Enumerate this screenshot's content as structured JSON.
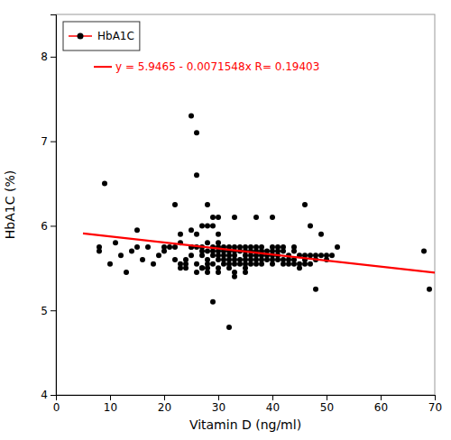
{
  "chart_data": {
    "type": "scatter",
    "xlabel": "Vitamin D (ng/ml)",
    "ylabel": "HbA1C (%)",
    "xlim": [
      0,
      70
    ],
    "ylim": [
      4,
      8.5
    ],
    "xticks": [
      0,
      10,
      20,
      30,
      40,
      50,
      60,
      70
    ],
    "yticks": [
      4,
      5,
      6,
      7,
      8
    ],
    "grid": false,
    "legend": "upper left",
    "series": [
      {
        "name": "HbA1C",
        "type": "scatter",
        "color": "#000000",
        "marker": "circle",
        "x": [
          8,
          8,
          9,
          10,
          11,
          12,
          13,
          14,
          15,
          15,
          16,
          17,
          18,
          19,
          20,
          20,
          21,
          22,
          22,
          22,
          23,
          23,
          23,
          23,
          24,
          24,
          24,
          25,
          25,
          25,
          25,
          25,
          26,
          26,
          26,
          26,
          26,
          26,
          27,
          27,
          27,
          27,
          27,
          27,
          28,
          28,
          28,
          28,
          28,
          28,
          28,
          28,
          29,
          29,
          29,
          29,
          29,
          29,
          29,
          30,
          30,
          30,
          30,
          30,
          30,
          30,
          30,
          30,
          31,
          31,
          31,
          31,
          31,
          32,
          32,
          32,
          32,
          32,
          32,
          32,
          33,
          33,
          33,
          33,
          33,
          33,
          33,
          33,
          34,
          34,
          34,
          34,
          35,
          35,
          35,
          35,
          35,
          35,
          35,
          36,
          36,
          36,
          36,
          36,
          37,
          37,
          37,
          37,
          37,
          37,
          38,
          38,
          38,
          38,
          38,
          39,
          39,
          39,
          40,
          40,
          40,
          40,
          40,
          40,
          41,
          41,
          41,
          41,
          42,
          42,
          42,
          42,
          43,
          43,
          43,
          44,
          44,
          44,
          44,
          45,
          45,
          45,
          46,
          46,
          46,
          46,
          47,
          47,
          47,
          48,
          48,
          48,
          49,
          49,
          50,
          50,
          51,
          52,
          68,
          69
        ],
        "values": [
          5.75,
          5.7,
          6.5,
          5.55,
          5.8,
          5.65,
          5.45,
          5.7,
          5.75,
          5.95,
          5.6,
          5.75,
          5.55,
          5.65,
          5.7,
          5.75,
          5.75,
          5.75,
          6.25,
          5.6,
          5.8,
          5.9,
          5.55,
          5.5,
          5.55,
          5.6,
          5.5,
          7.3,
          5.75,
          5.65,
          5.75,
          5.95,
          7.1,
          6.6,
          5.9,
          5.75,
          5.55,
          5.45,
          6.0,
          5.75,
          5.7,
          5.65,
          5.5,
          5.5,
          6.25,
          6.0,
          5.8,
          5.7,
          5.6,
          5.55,
          5.5,
          5.45,
          6.1,
          6.0,
          5.75,
          5.7,
          5.65,
          5.55,
          5.1,
          6.1,
          5.9,
          5.8,
          5.75,
          5.7,
          5.65,
          5.6,
          5.5,
          5.45,
          5.75,
          5.7,
          5.65,
          5.6,
          5.55,
          5.75,
          5.7,
          5.65,
          5.6,
          5.55,
          5.5,
          4.8,
          6.1,
          5.75,
          5.7,
          5.65,
          5.6,
          5.55,
          5.45,
          5.4,
          5.75,
          5.7,
          5.6,
          5.55,
          5.75,
          5.7,
          5.65,
          5.6,
          5.55,
          5.5,
          5.45,
          5.75,
          5.7,
          5.65,
          5.6,
          5.55,
          6.1,
          5.75,
          5.7,
          5.65,
          5.6,
          5.55,
          5.75,
          5.7,
          5.65,
          5.6,
          5.55,
          5.7,
          5.65,
          5.6,
          6.1,
          5.75,
          5.7,
          5.65,
          5.6,
          5.55,
          5.75,
          5.7,
          5.65,
          5.6,
          5.75,
          5.7,
          5.6,
          5.55,
          5.65,
          5.6,
          5.55,
          5.75,
          5.7,
          5.6,
          5.55,
          5.65,
          5.55,
          5.5,
          6.25,
          5.65,
          5.6,
          5.55,
          6.0,
          5.65,
          5.55,
          5.65,
          5.6,
          5.25,
          5.9,
          5.65,
          5.65,
          5.6,
          5.65,
          5.75,
          5.7,
          5.25
        ]
      },
      {
        "type": "line",
        "color": "#ff0000",
        "line_style": "solid",
        "x": [
          5,
          70
        ],
        "values": [
          5.910726,
          5.445664
        ]
      }
    ],
    "annotations": [
      {
        "text": "y = 5.9465 - 0.0071548x   R= 0.19403",
        "x": 7.0,
        "y": 7.88,
        "color": "#ff0000"
      }
    ]
  }
}
